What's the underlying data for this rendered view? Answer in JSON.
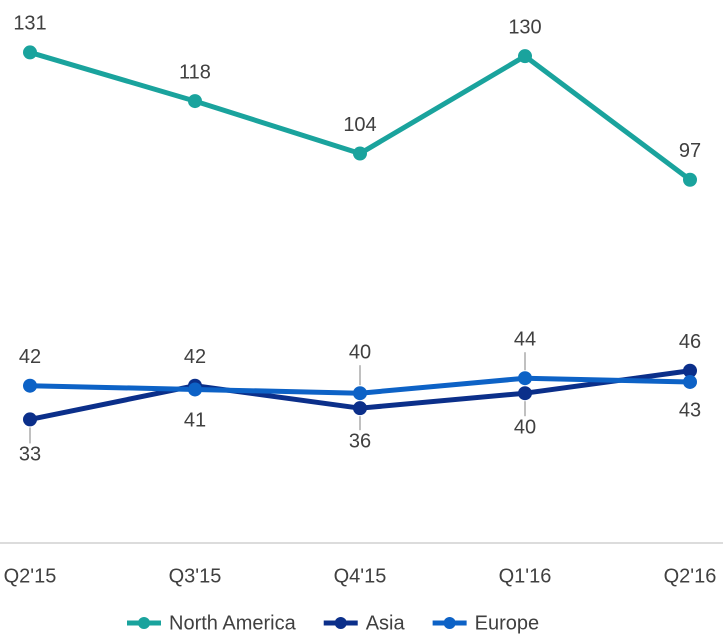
{
  "chart_data": {
    "type": "line",
    "categories": [
      "Q2'15",
      "Q3'15",
      "Q4'15",
      "Q1'16",
      "Q2'16"
    ],
    "series": [
      {
        "name": "North America",
        "color": "#1aa39d",
        "values": [
          131,
          118,
          104,
          130,
          97
        ]
      },
      {
        "name": "Asia",
        "color": "#0b2f8a",
        "values": [
          33,
          42,
          36,
          40,
          46
        ]
      },
      {
        "name": "Europe",
        "color": "#0d62c6",
        "values": [
          42,
          41,
          40,
          44,
          43
        ]
      }
    ],
    "ylim": [
      0,
      145
    ],
    "grid": false,
    "legend": "bottom"
  }
}
